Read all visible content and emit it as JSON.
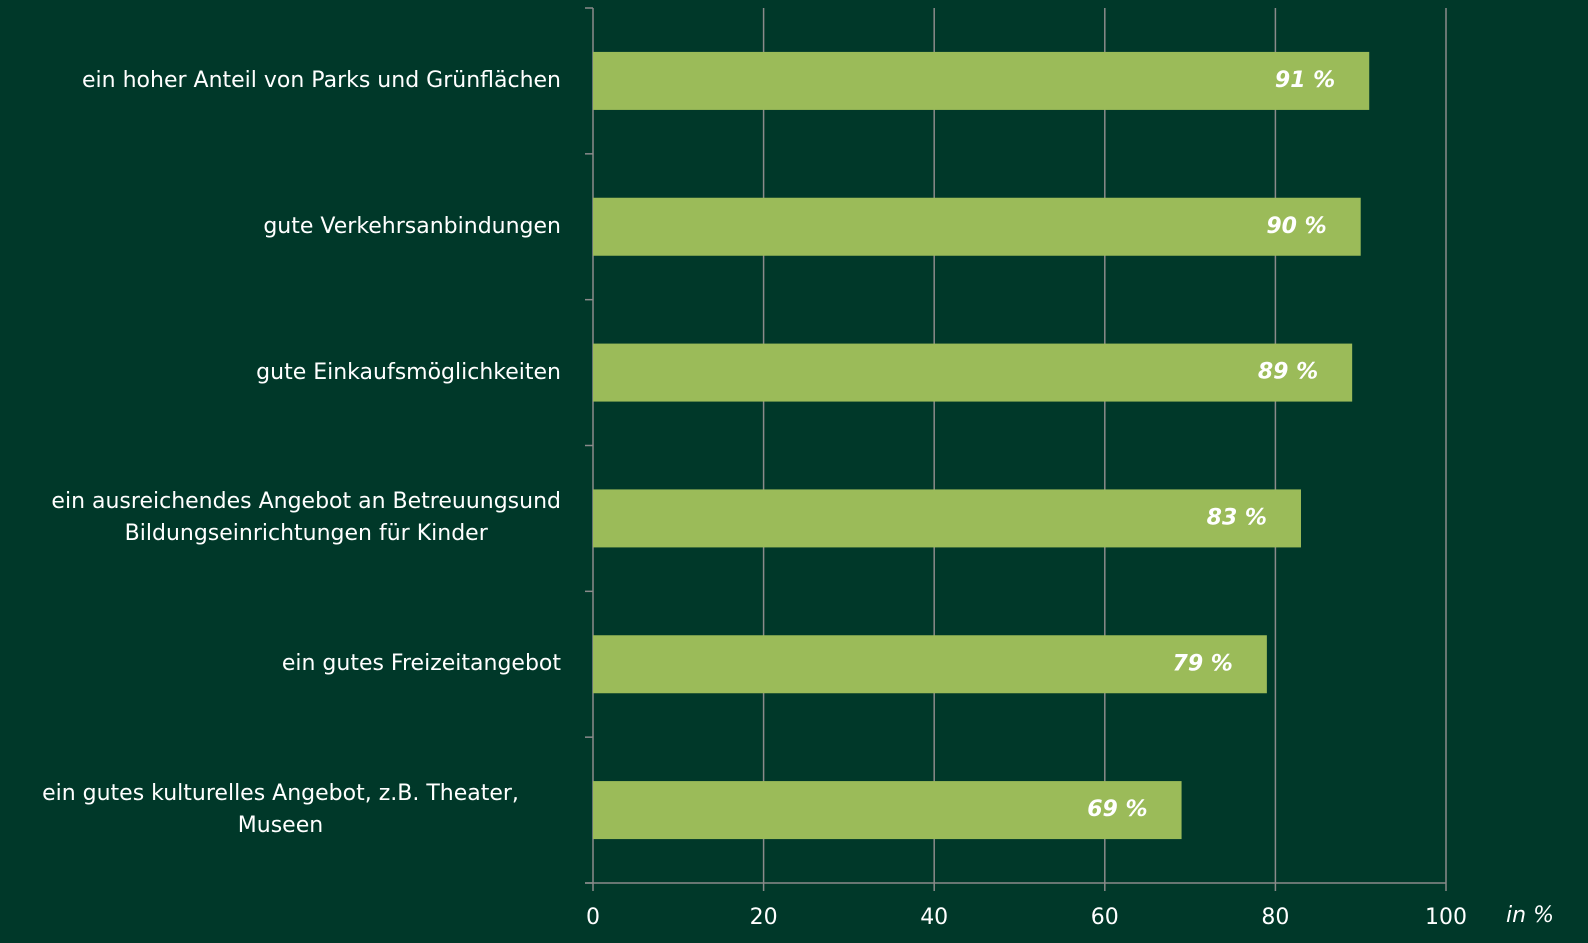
{
  "chart_data": {
    "type": "bar",
    "orientation": "horizontal",
    "categories": [
      "ein hoher Anteil von Parks und Grünflächen",
      "gute Verkehrsanbindungen",
      "gute Einkaufsmöglichkeiten",
      "ein ausreichendes Angebot an Betreuungsund\nBildungseinrichtungen für Kinder",
      "ein gutes Freizeitangebot",
      "ein gutes kulturelles Angebot, z.B. Theater, Museen"
    ],
    "values": [
      91,
      90,
      89,
      83,
      79,
      69
    ],
    "value_labels": [
      "91 %",
      "90 %",
      "89 %",
      "83 %",
      "79 %",
      "69 %"
    ],
    "color": "#9bbb59",
    "xlim": [
      0,
      100
    ],
    "xticks": [
      0,
      20,
      40,
      60,
      80,
      100
    ],
    "grid": true,
    "xlabel": "in %"
  }
}
